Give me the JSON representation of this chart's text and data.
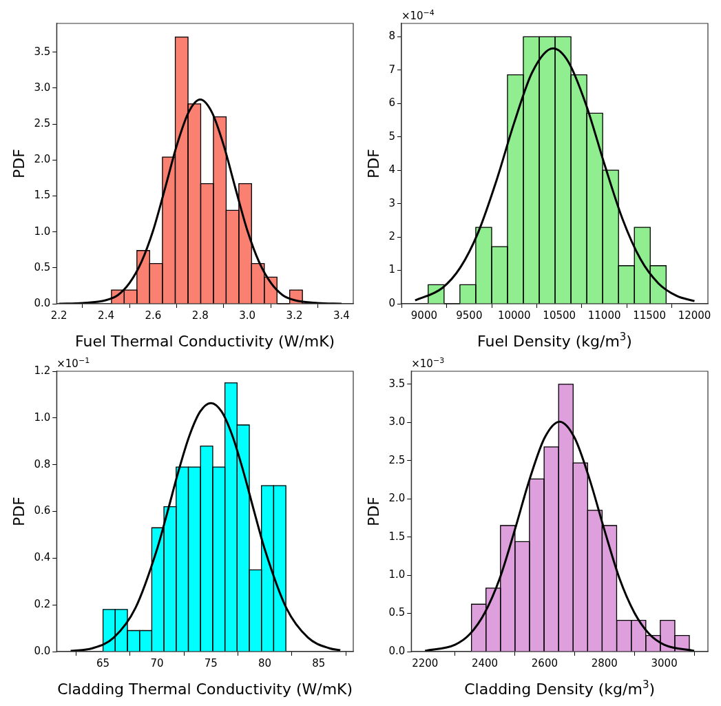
{
  "chart_data": [
    {
      "type": "histogram",
      "xlabel": "Fuel Thermal Conductivity (W/mK)",
      "ylabel": "PDF",
      "color": "#fa8072",
      "bins": [
        2.423,
        2.477,
        2.531,
        2.585,
        2.639,
        2.694,
        2.748,
        2.802,
        2.856,
        2.91,
        2.964,
        3.018,
        3.072,
        3.126,
        3.18,
        3.234
      ],
      "values": [
        0.19,
        0.19,
        0.74,
        0.56,
        2.04,
        3.71,
        2.78,
        1.67,
        2.6,
        1.3,
        1.67,
        0.56,
        0.37,
        0,
        0.19
      ],
      "series": [
        {
          "type": "line",
          "color": "#000000",
          "x": [
            2.2,
            2.3,
            2.4,
            2.45,
            2.5,
            2.55,
            2.6,
            2.65,
            2.7,
            2.75,
            2.8,
            2.85,
            2.9,
            2.95,
            3.0,
            3.05,
            3.1,
            3.15,
            3.2,
            3.3,
            3.4
          ],
          "values": [
            0,
            0.01,
            0.05,
            0.12,
            0.29,
            0.58,
            1.02,
            1.6,
            2.2,
            2.66,
            2.84,
            2.66,
            2.2,
            1.6,
            1.02,
            0.58,
            0.29,
            0.12,
            0.05,
            0.01,
            0
          ]
        }
      ],
      "xlim": [
        2.19,
        3.45
      ],
      "xticks": [
        2.2,
        2.4,
        2.6,
        2.8,
        {
          "value": 3,
          "label": "3.0"
        },
        3.2,
        3.4
      ],
      "ylim": [
        0,
        3.9
      ],
      "yticks": [
        {
          "value": 0,
          "label": "0.0"
        },
        0.5,
        {
          "value": 1,
          "label": "1.0"
        },
        1.5,
        {
          "value": 2,
          "label": "2.0"
        },
        2.5,
        {
          "value": 3,
          "label": "3.0"
        },
        3.5
      ]
    },
    {
      "type": "histogram",
      "xlabel": "Fuel Density (kg/m$^{3}$)",
      "ylabel": "PDF",
      "color": "#90ee90",
      "annotations": [
        "×10$^{−4}$"
      ],
      "bins": [
        9045,
        9221,
        9397,
        9573,
        9749,
        9925,
        10101,
        10277,
        10453,
        10629,
        10805,
        10981,
        11157,
        11333,
        11509,
        11685
      ],
      "values": [
        0.57,
        0,
        0.57,
        2.29,
        1.71,
        6.86,
        8.0,
        8.0,
        8.0,
        6.86,
        5.71,
        4.0,
        1.14,
        2.29,
        1.14
      ],
      "series": [
        {
          "type": "line",
          "color": "#000000",
          "x": [
            8900,
            9200,
            9400,
            9600,
            9800,
            10000,
            10200,
            10430,
            10600,
            10800,
            11000,
            11200,
            11400,
            11600,
            11800,
            12000
          ],
          "values": [
            0.1,
            0.47,
            1.08,
            2.14,
            3.67,
            5.43,
            6.94,
            7.65,
            7.25,
            5.94,
            4.19,
            2.55,
            1.34,
            0.61,
            0.24,
            0.08
          ]
        }
      ],
      "xlim": [
        8748,
        12149
      ],
      "xticks": [
        9000,
        9500,
        10000,
        10500,
        11000,
        11500,
        12000
      ],
      "ylim": [
        0,
        8.4
      ],
      "yticks": [
        0,
        1,
        2,
        3,
        4,
        5,
        6,
        7,
        8
      ]
    },
    {
      "type": "histogram",
      "xlabel": "Cladding Thermal Conductivity (W/mK)",
      "ylabel": "PDF",
      "color": "#00ffff",
      "annotations": [
        "×10$^{−1}$"
      ],
      "bins": [
        65,
        66.13,
        67.26,
        68.39,
        69.52,
        70.65,
        71.78,
        72.91,
        74.04,
        75.17,
        76.3,
        77.43,
        78.56,
        79.69,
        80.82,
        81.95
      ],
      "values": [
        0.18,
        0.18,
        0.09,
        0.09,
        0.53,
        0.62,
        0.79,
        0.79,
        0.88,
        0.79,
        1.15,
        0.97,
        0.35,
        0.71,
        0.71
      ],
      "series": [
        {
          "type": "line",
          "color": "#000000",
          "x": [
            62,
            64,
            66,
            68,
            70,
            71,
            72,
            73,
            74,
            75,
            76,
            77,
            78,
            79,
            80,
            82,
            84,
            86,
            87
          ],
          "values": [
            0.003,
            0.014,
            0.06,
            0.186,
            0.437,
            0.602,
            0.773,
            0.923,
            1.027,
            1.064,
            1.027,
            0.923,
            0.773,
            0.602,
            0.437,
            0.186,
            0.06,
            0.014,
            0.006
          ]
        }
      ],
      "xlim": [
        60.7,
        88.2
      ],
      "xticks": [
        65,
        70,
        75,
        80,
        85
      ],
      "ylim": [
        0,
        1.2
      ],
      "yticks": [
        {
          "value": 0,
          "label": "0.0"
        },
        0.2,
        0.4,
        0.6,
        0.8,
        {
          "value": 1,
          "label": "1.0"
        },
        1.2
      ]
    },
    {
      "type": "histogram",
      "xlabel": "Cladding Density (kg/m$^{3}$)",
      "ylabel": "PDF",
      "color": "#dda0dd",
      "annotations": [
        "×10$^{−3}$"
      ],
      "bins": [
        2355,
        2404,
        2452,
        2501,
        2549,
        2598,
        2647,
        2695,
        2744,
        2792,
        2841,
        2890,
        2938,
        2987,
        3035,
        3084
      ],
      "values": [
        0.62,
        0.83,
        1.65,
        1.44,
        2.26,
        2.68,
        3.5,
        2.47,
        1.85,
        1.65,
        0.41,
        0.41,
        0.21,
        0.41,
        0.21
      ],
      "series": [
        {
          "type": "line",
          "color": "#000000",
          "x": [
            2200,
            2300,
            2350,
            2400,
            2450,
            2500,
            2550,
            2600,
            2650,
            2700,
            2750,
            2800,
            2850,
            2900,
            2950,
            3000,
            3100
          ],
          "values": [
            0.01,
            0.09,
            0.23,
            0.51,
            0.96,
            1.59,
            2.26,
            2.8,
            3.01,
            2.8,
            2.26,
            1.59,
            0.96,
            0.51,
            0.23,
            0.09,
            0.01
          ]
        }
      ],
      "xlim": [
        2154,
        3146
      ],
      "xticks": [
        2200,
        2400,
        2600,
        2800,
        3000
      ],
      "ylim": [
        0,
        3.67
      ],
      "yticks": [
        {
          "value": 0,
          "label": "0.0"
        },
        0.5,
        {
          "value": 1,
          "label": "1.0"
        },
        1.5,
        {
          "value": 2,
          "label": "2.0"
        },
        2.5,
        {
          "value": 3,
          "label": "3.0"
        },
        3.5
      ]
    }
  ]
}
